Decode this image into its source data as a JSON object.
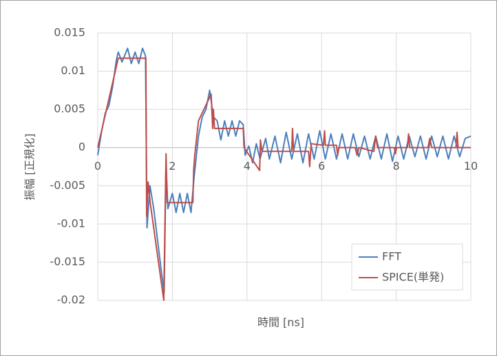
{
  "chart_data": {
    "type": "line",
    "x_label": "時間 [ns]",
    "y_label": "振幅 [正規化]",
    "xlim": [
      0,
      10
    ],
    "xticks": [
      0,
      2,
      4,
      6,
      8,
      10
    ],
    "ylim": [
      -0.02,
      0.015
    ],
    "yticks": [
      0.015,
      0.01,
      0.005,
      0,
      -0.005,
      -0.01,
      -0.015,
      -0.02
    ],
    "grid": true,
    "legend": "lower right",
    "series": [
      {
        "name": "FFT",
        "color": "#4a7ebb",
        "x": [
          0,
          0.1,
          0.2,
          0.3,
          0.4,
          0.5,
          0.55,
          0.65,
          0.8,
          0.9,
          1.0,
          1.1,
          1.2,
          1.28,
          1.32,
          1.4,
          1.5,
          1.6,
          1.7,
          1.78,
          1.83,
          1.88,
          2.0,
          2.1,
          2.2,
          2.3,
          2.4,
          2.5,
          2.58,
          2.7,
          2.8,
          2.9,
          3.0,
          3.1,
          3.2,
          3.3,
          3.4,
          3.5,
          3.6,
          3.7,
          3.8,
          3.9,
          3.95,
          4.05,
          4.15,
          4.25,
          4.35,
          4.5,
          4.6,
          4.75,
          4.9,
          5.05,
          5.2,
          5.35,
          5.5,
          5.65,
          5.8,
          5.95,
          6.1,
          6.25,
          6.4,
          6.55,
          6.7,
          6.85,
          7.0,
          7.15,
          7.3,
          7.45,
          7.6,
          7.75,
          7.9,
          8.05,
          8.2,
          8.35,
          8.5,
          8.65,
          8.8,
          8.95,
          9.1,
          9.25,
          9.4,
          9.55,
          9.7,
          9.85,
          10.0
        ],
        "values": [
          -0.001,
          0.002,
          0.0045,
          0.0055,
          0.008,
          0.0115,
          0.0125,
          0.0112,
          0.013,
          0.011,
          0.0125,
          0.011,
          0.013,
          0.012,
          -0.0105,
          -0.005,
          -0.008,
          -0.012,
          -0.016,
          -0.019,
          -0.002,
          -0.008,
          -0.006,
          -0.0085,
          -0.006,
          -0.0085,
          -0.006,
          -0.0085,
          -0.004,
          0.0015,
          0.004,
          0.005,
          0.0075,
          0.004,
          0.0035,
          0.001,
          0.0035,
          0.0015,
          0.0035,
          0.0015,
          0.0035,
          0.003,
          -0.001,
          0.0002,
          -0.002,
          0.0005,
          -0.0015,
          0.0012,
          -0.0015,
          0.0015,
          -0.002,
          0.002,
          -0.0015,
          0.0018,
          -0.002,
          0.0018,
          -0.0015,
          0.0022,
          -0.0015,
          0.0018,
          -0.0015,
          0.0018,
          -0.0015,
          0.0018,
          -0.0012,
          0.0015,
          -0.0015,
          0.0015,
          -0.0015,
          0.0018,
          -0.0018,
          0.0015,
          -0.0015,
          0.0015,
          -0.0012,
          0.0015,
          -0.0015,
          0.0015,
          -0.0012,
          0.0015,
          -0.0015,
          0.0015,
          -0.0012,
          0.0012,
          0.0015
        ]
      },
      {
        "name": "SPICE(単発)",
        "color": "#be4b48",
        "x": [
          0,
          0.55,
          1.29,
          1.31,
          1.35,
          1.4,
          1.77,
          1.83,
          1.86,
          2.55,
          2.57,
          2.6,
          2.7,
          3.04,
          3.08,
          3.1,
          3.13,
          3.9,
          3.92,
          4.34,
          4.36,
          4.4,
          5.2,
          5.22,
          5.25,
          5.65,
          5.68,
          5.72,
          6.05,
          6.08,
          6.1,
          6.4,
          6.43,
          6.46,
          6.9,
          6.95,
          7.0,
          7.4,
          7.45,
          7.5,
          7.95,
          7.98,
          8.01,
          8.3,
          8.33,
          8.36,
          8.85,
          8.9,
          8.95,
          9.6,
          9.63,
          9.66,
          10
        ],
        "values": [
          0,
          0.0117,
          0.0117,
          -0.009,
          -0.0045,
          -0.007,
          -0.02,
          -0.0008,
          -0.0072,
          -0.0072,
          -0.003,
          -0.001,
          0.0035,
          0.007,
          0.0025,
          0.005,
          0.0025,
          0.0025,
          0,
          -0.003,
          0.001,
          -0.0005,
          -0.0005,
          0.0025,
          -0.0005,
          -0.0005,
          -0.0025,
          0.0005,
          0.0003,
          0.0022,
          0.0003,
          0.0003,
          -0.001,
          0,
          0,
          -0.001,
          0,
          -0.0005,
          0.0015,
          0,
          0,
          -0.0008,
          0,
          0,
          0.0018,
          0,
          0,
          0.0012,
          0,
          0,
          0.002,
          0,
          0
        ]
      }
    ]
  }
}
